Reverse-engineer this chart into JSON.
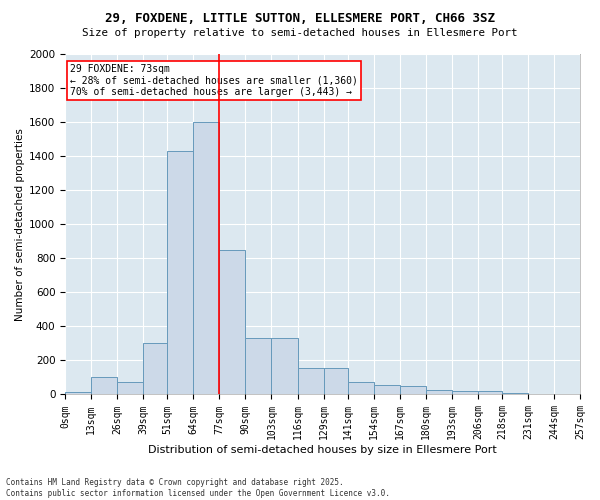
{
  "title_line1": "29, FOXDENE, LITTLE SUTTON, ELLESMERE PORT, CH66 3SZ",
  "title_line2": "Size of property relative to semi-detached houses in Ellesmere Port",
  "xlabel": "Distribution of semi-detached houses by size in Ellesmere Port",
  "ylabel": "Number of semi-detached properties",
  "footnote": "Contains HM Land Registry data © Crown copyright and database right 2025.\nContains public sector information licensed under the Open Government Licence v3.0.",
  "bin_edges": [
    0,
    13,
    26,
    39,
    51,
    64,
    77,
    90,
    103,
    116,
    129,
    141,
    154,
    167,
    180,
    193,
    206,
    218,
    231,
    244,
    257
  ],
  "bin_labels": [
    "0sqm",
    "13sqm",
    "26sqm",
    "39sqm",
    "51sqm",
    "64sqm",
    "77sqm",
    "90sqm",
    "103sqm",
    "116sqm",
    "129sqm",
    "141sqm",
    "154sqm",
    "167sqm",
    "180sqm",
    "193sqm",
    "206sqm",
    "218sqm",
    "231sqm",
    "244sqm",
    "257sqm"
  ],
  "bar_heights": [
    15,
    100,
    75,
    300,
    1430,
    1600,
    850,
    330,
    330,
    155,
    155,
    75,
    55,
    50,
    28,
    22,
    18,
    8,
    4,
    2
  ],
  "bar_color": "#ccd9e8",
  "bar_edge_color": "#6699bb",
  "background_color": "#dce8f0",
  "grid_color": "#ffffff",
  "fig_background": "#ffffff",
  "vline_x": 77,
  "vline_color": "red",
  "ylim": [
    0,
    2000
  ],
  "yticks": [
    0,
    200,
    400,
    600,
    800,
    1000,
    1200,
    1400,
    1600,
    1800,
    2000
  ],
  "annotation_title": "29 FOXDENE: 73sqm",
  "annotation_line1": "← 28% of semi-detached houses are smaller (1,360)",
  "annotation_line2": "70% of semi-detached houses are larger (3,443) →",
  "annotation_box_facecolor": "#ffffff",
  "annotation_box_edge": "red"
}
